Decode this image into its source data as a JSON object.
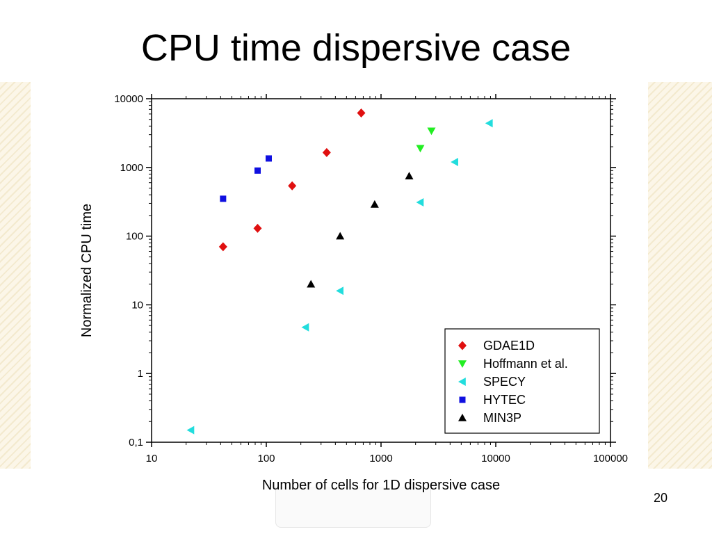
{
  "slide": {
    "title": "CPU time dispersive case",
    "page_number": "20"
  },
  "chart_data": {
    "type": "scatter",
    "title": "",
    "xlabel": "Number of cells for 1D dispersive case",
    "ylabel": "Normalized CPU time",
    "xscale": "log",
    "yscale": "log",
    "xlim": [
      10,
      100000
    ],
    "ylim": [
      0.1,
      10000
    ],
    "x_ticks": [
      10,
      100,
      1000,
      10000,
      100000
    ],
    "x_tick_labels": [
      "10",
      "100",
      "1000",
      "10000",
      "100000"
    ],
    "y_ticks": [
      0.1,
      1,
      10,
      100,
      1000,
      10000
    ],
    "y_tick_labels": [
      "0,1",
      "1",
      "10",
      "100",
      "1000",
      "10000"
    ],
    "grid": false,
    "legend_position": "bottom-right",
    "series": [
      {
        "name": "GDAE1D",
        "marker": "diamond",
        "color": "#e01010",
        "points": [
          [
            42,
            70
          ],
          [
            84,
            130
          ],
          [
            168,
            540
          ],
          [
            336,
            1650
          ],
          [
            672,
            6200
          ]
        ]
      },
      {
        "name": "Hoffmann et al.",
        "marker": "triangle-down",
        "color": "#22ee22",
        "points": [
          [
            2200,
            1900
          ],
          [
            2750,
            3400
          ]
        ]
      },
      {
        "name": "SPECY",
        "marker": "triangle-left",
        "color": "#22dddd",
        "points": [
          [
            22,
            0.15
          ],
          [
            220,
            4.7
          ],
          [
            440,
            16
          ],
          [
            2200,
            310
          ],
          [
            4400,
            1200
          ],
          [
            8800,
            4400
          ]
        ]
      },
      {
        "name": "HYTEC",
        "marker": "square",
        "color": "#1010e0",
        "points": [
          [
            42,
            350
          ],
          [
            84,
            900
          ],
          [
            105,
            1350
          ]
        ]
      },
      {
        "name": "MIN3P",
        "marker": "triangle-up",
        "color": "#000000",
        "points": [
          [
            245,
            20
          ],
          [
            440,
            100
          ],
          [
            880,
            290
          ],
          [
            1760,
            750
          ]
        ]
      }
    ]
  }
}
